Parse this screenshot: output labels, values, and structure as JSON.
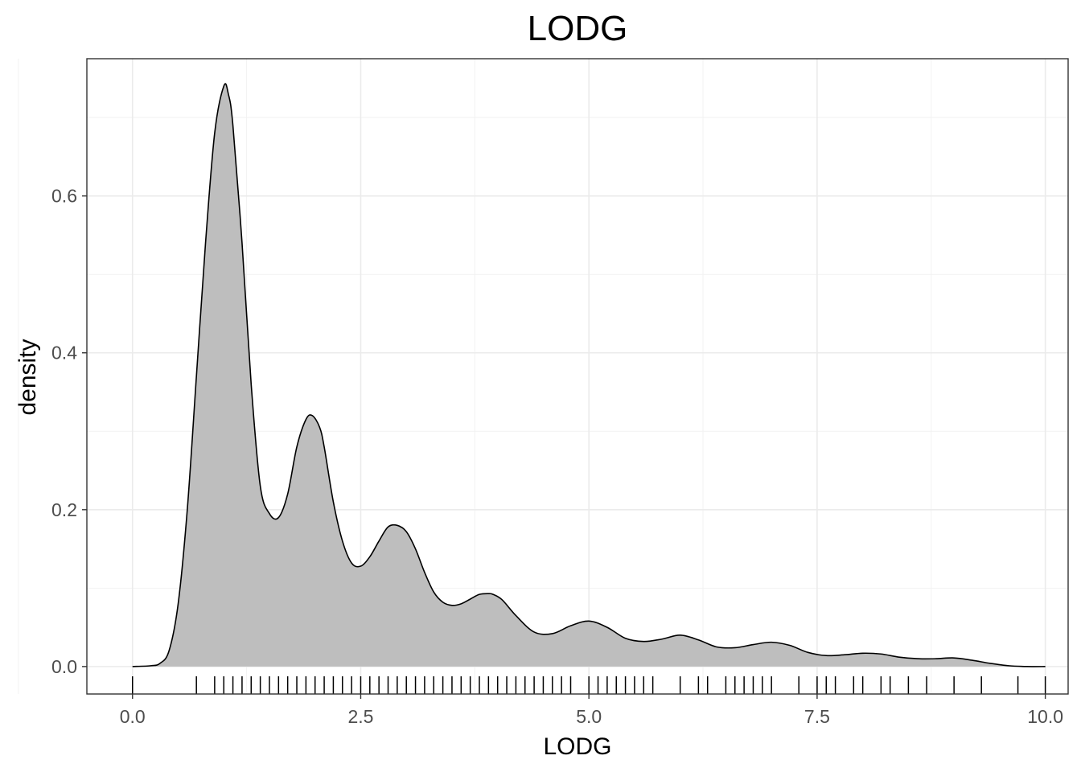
{
  "chart_data": {
    "type": "area",
    "title": "LODG",
    "xlabel": "LODG",
    "ylabel": "density",
    "xlim": [
      -0.5,
      10.25
    ],
    "ylim": [
      -0.035,
      0.775
    ],
    "x_ticks": [
      0,
      2.5,
      5,
      7.5,
      10
    ],
    "x_tick_labels": [
      "0.0",
      "2.5",
      "5.0",
      "7.5",
      "10.0"
    ],
    "y_ticks": [
      0,
      0.2,
      0.4,
      0.6
    ],
    "y_tick_labels": [
      "0.0",
      "0.2",
      "0.4",
      "0.6"
    ],
    "grid": true,
    "fill_color": "#bebebe",
    "line_color": "#000000",
    "density_curve": {
      "x": [
        0,
        0.2,
        0.3,
        0.4,
        0.5,
        0.6,
        0.7,
        0.8,
        0.9,
        1.0,
        1.05,
        1.1,
        1.2,
        1.3,
        1.4,
        1.5,
        1.6,
        1.7,
        1.8,
        1.9,
        1.97,
        2.05,
        2.1,
        2.2,
        2.3,
        2.4,
        2.5,
        2.6,
        2.7,
        2.8,
        2.9,
        3.0,
        3.1,
        3.2,
        3.3,
        3.4,
        3.5,
        3.6,
        3.7,
        3.8,
        3.9,
        3.95,
        4.05,
        4.2,
        4.4,
        4.6,
        4.8,
        5.0,
        5.2,
        5.4,
        5.6,
        5.8,
        6.0,
        6.2,
        6.4,
        6.6,
        6.8,
        7.0,
        7.2,
        7.4,
        7.6,
        7.8,
        8.0,
        8.2,
        8.4,
        8.6,
        8.8,
        9.0,
        9.2,
        9.4,
        9.6,
        9.8,
        10.0
      ],
      "y": [
        0,
        0.001,
        0.004,
        0.02,
        0.08,
        0.2,
        0.37,
        0.54,
        0.68,
        0.74,
        0.73,
        0.69,
        0.54,
        0.36,
        0.23,
        0.195,
        0.19,
        0.22,
        0.28,
        0.315,
        0.32,
        0.305,
        0.28,
        0.21,
        0.16,
        0.132,
        0.128,
        0.14,
        0.16,
        0.178,
        0.18,
        0.172,
        0.15,
        0.12,
        0.095,
        0.082,
        0.078,
        0.08,
        0.086,
        0.092,
        0.093,
        0.092,
        0.085,
        0.065,
        0.044,
        0.042,
        0.052,
        0.058,
        0.05,
        0.036,
        0.032,
        0.035,
        0.04,
        0.034,
        0.025,
        0.024,
        0.028,
        0.031,
        0.027,
        0.018,
        0.014,
        0.015,
        0.017,
        0.016,
        0.012,
        0.01,
        0.01,
        0.011,
        0.008,
        0.004,
        0.001,
        0,
        0
      ]
    },
    "rug": [
      0,
      0.7,
      0.9,
      1.0,
      1.1,
      1.2,
      1.3,
      1.4,
      1.5,
      1.6,
      1.7,
      1.8,
      1.9,
      2.0,
      2.1,
      2.2,
      2.3,
      2.4,
      2.5,
      2.6,
      2.7,
      2.8,
      2.9,
      3.0,
      3.1,
      3.2,
      3.3,
      3.4,
      3.5,
      3.6,
      3.7,
      3.8,
      3.9,
      4.0,
      4.1,
      4.2,
      4.3,
      4.4,
      4.5,
      4.6,
      4.7,
      4.8,
      5.0,
      5.1,
      5.2,
      5.3,
      5.4,
      5.5,
      5.6,
      5.7,
      6.0,
      6.2,
      6.3,
      6.5,
      6.6,
      6.7,
      6.8,
      6.9,
      7.0,
      7.3,
      7.5,
      7.6,
      7.7,
      7.9,
      8.0,
      8.2,
      8.3,
      8.5,
      8.7,
      9.0,
      9.3,
      9.7,
      10.0
    ]
  }
}
